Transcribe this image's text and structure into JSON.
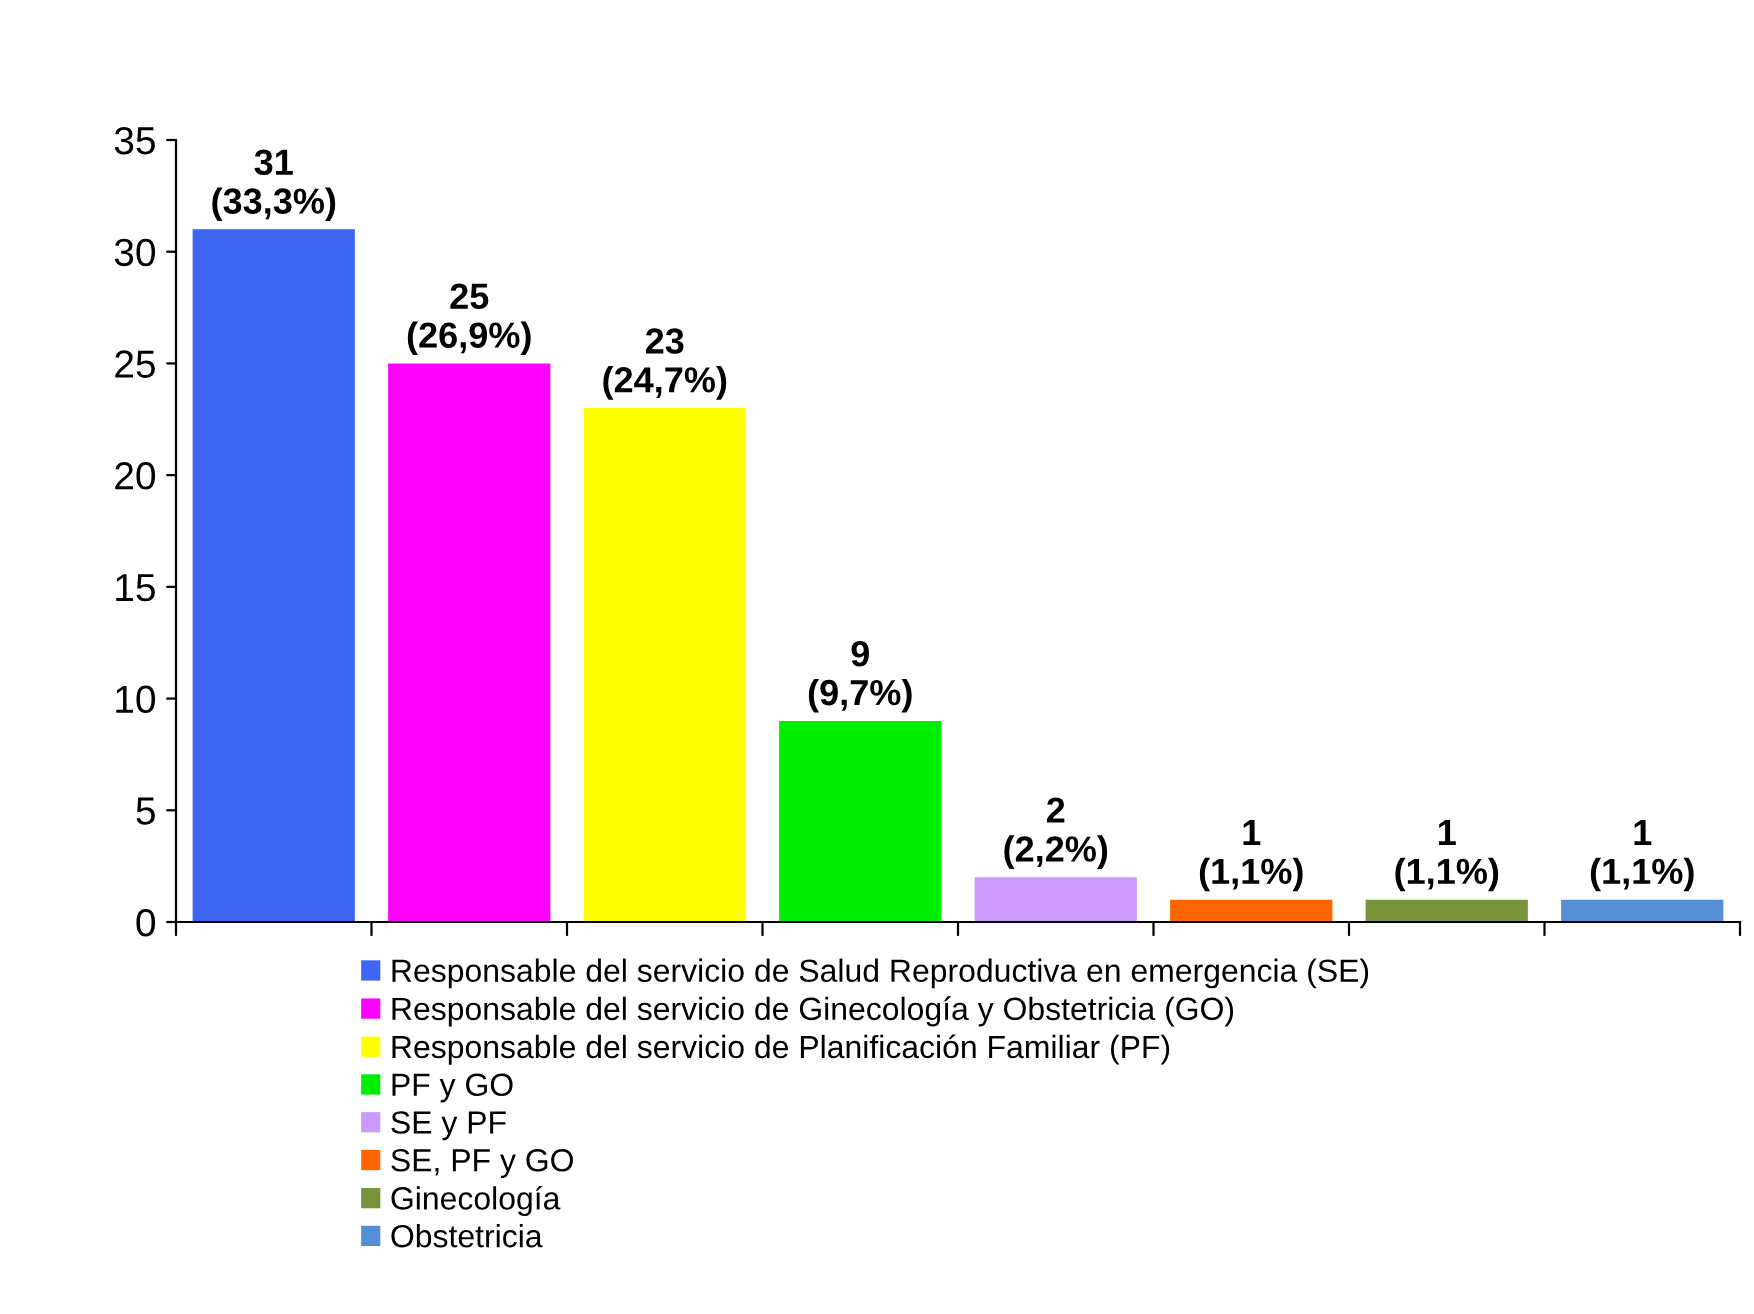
{
  "chart_data": {
    "type": "bar",
    "categories": [
      null,
      null,
      null,
      null,
      null,
      null,
      null,
      null
    ],
    "series": [
      {
        "name": "Responsable del servicio de Salud Reproductiva en emergencia (SE)",
        "color": "#3f65f5",
        "values": [
          31,
          null,
          null,
          null,
          null,
          null,
          null,
          null
        ],
        "value_labels": [
          "31\n(33,3%)",
          null,
          null,
          null,
          null,
          null,
          null,
          null
        ]
      },
      {
        "name": "Responsable del servicio de Ginecología y Obstetricia (GO)",
        "color": "#ff00ff",
        "values": [
          null,
          25,
          null,
          null,
          null,
          null,
          null,
          null
        ],
        "value_labels": [
          null,
          "25\n(26,9%)",
          null,
          null,
          null,
          null,
          null,
          null
        ]
      },
      {
        "name": "Responsable del servicio de Planificación Familiar (PF)",
        "color": "#ffff00",
        "values": [
          null,
          null,
          23,
          null,
          null,
          null,
          null,
          null
        ],
        "value_labels": [
          null,
          null,
          "23\n(24,7%)",
          null,
          null,
          null,
          null,
          null
        ]
      },
      {
        "name": "PF y GO",
        "color": "#00ee00",
        "values": [
          null,
          null,
          null,
          9,
          null,
          null,
          null,
          null
        ],
        "value_labels": [
          null,
          null,
          null,
          "9\n(9,7%)",
          null,
          null,
          null,
          null
        ]
      },
      {
        "name": "SE y PF",
        "color": "#cc99ff",
        "values": [
          null,
          null,
          null,
          null,
          2,
          null,
          null,
          null
        ],
        "value_labels": [
          null,
          null,
          null,
          null,
          "2\n(2,2%)",
          null,
          null,
          null
        ]
      },
      {
        "name": "SE, PF y GO",
        "color": "#ff6600",
        "values": [
          null,
          null,
          null,
          null,
          null,
          1,
          null,
          null
        ],
        "value_labels": [
          null,
          null,
          null,
          null,
          null,
          "1\n(1,1%)",
          null,
          null
        ]
      },
      {
        "name": "Ginecología",
        "color": "#77933c",
        "values": [
          null,
          null,
          null,
          null,
          null,
          null,
          1,
          null
        ],
        "value_labels": [
          null,
          null,
          null,
          null,
          null,
          null,
          "1\n(1,1%)",
          null
        ]
      },
      {
        "name": "Obstetricia",
        "color": "#558ed5",
        "values": [
          null,
          null,
          null,
          null,
          null,
          null,
          null,
          1
        ],
        "value_labels": [
          null,
          null,
          null,
          null,
          null,
          null,
          null,
          "1\n(1,1%)"
        ]
      }
    ],
    "ylim": [
      0,
      35
    ],
    "yticks": [
      0,
      5,
      10,
      15,
      20,
      25,
      30,
      35
    ],
    "grid": false,
    "legend": "bottom"
  }
}
